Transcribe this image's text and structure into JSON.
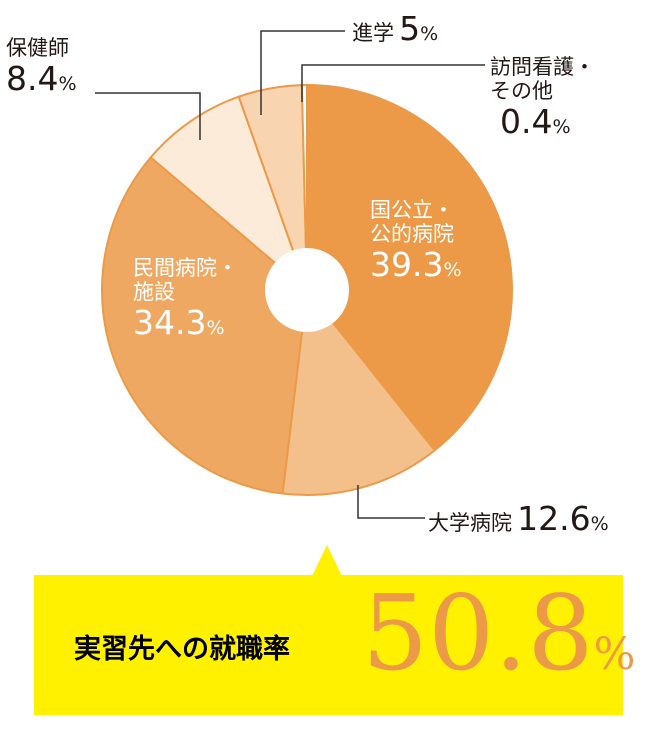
{
  "chart_data": {
    "type": "pie",
    "donut": true,
    "start": "top",
    "direction": "clockwise",
    "unit": "%",
    "slices": [
      {
        "label": "国公立・公的病院",
        "lines": [
          "国公立・",
          "公的病院"
        ],
        "value": 39.3,
        "display": "39.3",
        "color": "#ec9a48"
      },
      {
        "label": "大学病院",
        "lines": [
          "大学病院"
        ],
        "value": 12.6,
        "display": "12.6",
        "color": "#f3bf8a"
      },
      {
        "label": "民間病院・施設",
        "lines": [
          "民間病院・",
          "施設"
        ],
        "value": 34.3,
        "display": "34.3",
        "color": "#efa862"
      },
      {
        "label": "保健師",
        "lines": [
          "保健師"
        ],
        "value": 8.4,
        "display": "8.4",
        "color": "#fcebd9"
      },
      {
        "label": "進学",
        "lines": [
          "進学"
        ],
        "value": 5,
        "display": "5",
        "color": "#f8d4b1"
      },
      {
        "label": "訪問看護・その他",
        "lines": [
          "訪問看護・",
          "その他"
        ],
        "value": 0.4,
        "display": "0.4",
        "color": "#ffffff"
      }
    ],
    "edge_color": "#ec9a48"
  },
  "callout": {
    "text": "実習先への就職率",
    "value": "50.8",
    "unit": "%",
    "bg_color": "#fff100",
    "value_color": "#ec9a48"
  }
}
